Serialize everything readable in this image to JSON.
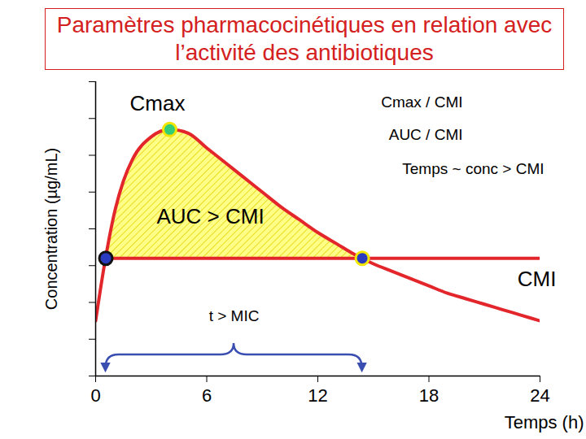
{
  "chart_data": {
    "type": "line",
    "title": "Paramètres pharmacocinétiques en relation avec l’activité des antibiotiques",
    "x_label": "Temps (h)",
    "y_label": "Concentration (µg/mL)",
    "x": [
      0,
      0.5,
      1,
      1.5,
      2,
      3,
      4,
      5,
      6,
      7,
      8,
      9,
      10,
      11,
      12,
      13,
      14,
      15,
      16,
      17,
      18,
      19,
      20,
      21,
      22,
      23,
      24
    ],
    "values": [
      1.5,
      3.1,
      4.4,
      5.3,
      5.9,
      6.5,
      6.7,
      6.6,
      6.2,
      5.8,
      5.4,
      5.0,
      4.6,
      4.25,
      3.9,
      3.6,
      3.3,
      3.05,
      2.85,
      2.65,
      2.45,
      2.25,
      2.1,
      1.95,
      1.8,
      1.65,
      1.5
    ],
    "color": "#e3262b",
    "xlim": [
      0,
      24
    ],
    "xticks": [
      0,
      6,
      12,
      18,
      24
    ],
    "ylim": [
      0,
      8
    ],
    "yticks": [
      0,
      1,
      2,
      3,
      4,
      5,
      6,
      7,
      8
    ],
    "tick_labels": "x",
    "mic": {
      "label": "CMI",
      "value": 3.2,
      "color": "#e3262b"
    },
    "area": {
      "label": "AUC > CMI",
      "color": "#ffff88"
    },
    "points": [
      {
        "label": "Cmax",
        "x": 4,
        "y": 6.7,
        "color": "#33cc77",
        "marker": "ringed"
      },
      {
        "x": 0.55,
        "y": 3.2,
        "color": "#2a3bbf",
        "marker": "dot"
      },
      {
        "x": 14.4,
        "y": 3.2,
        "color": "#2a3bbf",
        "marker": "ringed"
      }
    ],
    "interval": {
      "label": "t > MIC",
      "from": 0.55,
      "to": 14.4,
      "color": "#3a4db0"
    },
    "annotations": [
      "Cmax / CMI",
      "AUC / CMI",
      "Temps ~ conc > CMI"
    ]
  }
}
